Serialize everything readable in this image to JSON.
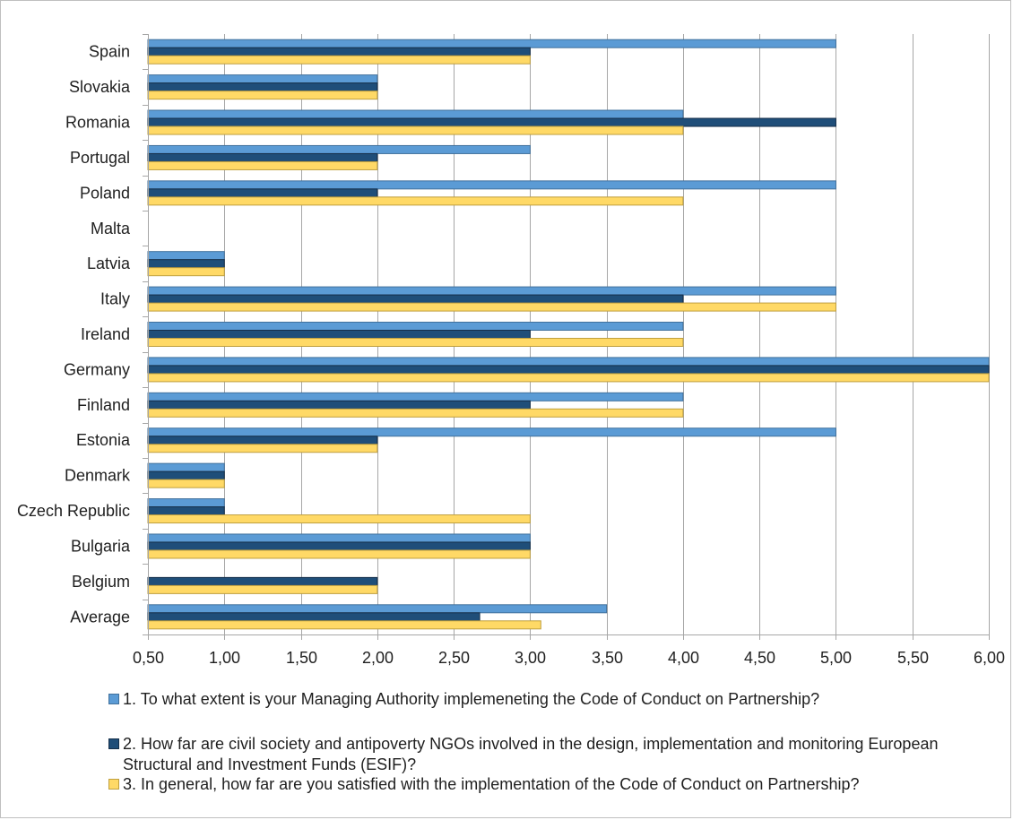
{
  "chart_data": {
    "type": "bar",
    "orientation": "horizontal",
    "categories": [
      "Spain",
      "Slovakia",
      "Romania",
      "Portugal",
      "Poland",
      "Malta",
      "Latvia",
      "Italy",
      "Ireland",
      "Germany",
      "Finland",
      "Estonia",
      "Denmark",
      "Czech Republic",
      "Bulgaria",
      "Belgium",
      "Average"
    ],
    "series": [
      {
        "name": "1. To what extent is your Managing Authority implemeneting the Code of Conduct on Partnership?",
        "color": "#5b9bd5",
        "values": [
          5,
          2,
          4,
          3,
          5,
          null,
          1,
          5,
          4,
          6,
          4,
          5,
          1,
          1,
          3,
          null,
          3.5
        ]
      },
      {
        "name": "2. How far are civil society and antipoverty NGOs involved in the design, implementation and monitoring European Structural and Investment Funds (ESIF)?",
        "color": "#1f4e79",
        "values": [
          3,
          2,
          5,
          2,
          2,
          null,
          1,
          4,
          3,
          6,
          3,
          2,
          1,
          1,
          3,
          2,
          2.67
        ]
      },
      {
        "name": "3. In general, how far are you satisfied with the implementation of the Code of Conduct on Partnership?",
        "color": "#ffd966",
        "values": [
          3,
          2,
          4,
          2,
          4,
          null,
          1,
          5,
          4,
          6,
          4,
          2,
          1,
          3,
          3,
          2,
          3.07
        ]
      }
    ],
    "xlim": [
      0.5,
      6.0
    ],
    "x_ticks": [
      "0,50",
      "1,00",
      "1,50",
      "2,00",
      "2,50",
      "3,00",
      "3,50",
      "4,00",
      "4,50",
      "5,00",
      "5,50",
      "6,00"
    ],
    "grid": true,
    "legend_position": "bottom",
    "title": "",
    "xlabel": "",
    "ylabel": ""
  }
}
